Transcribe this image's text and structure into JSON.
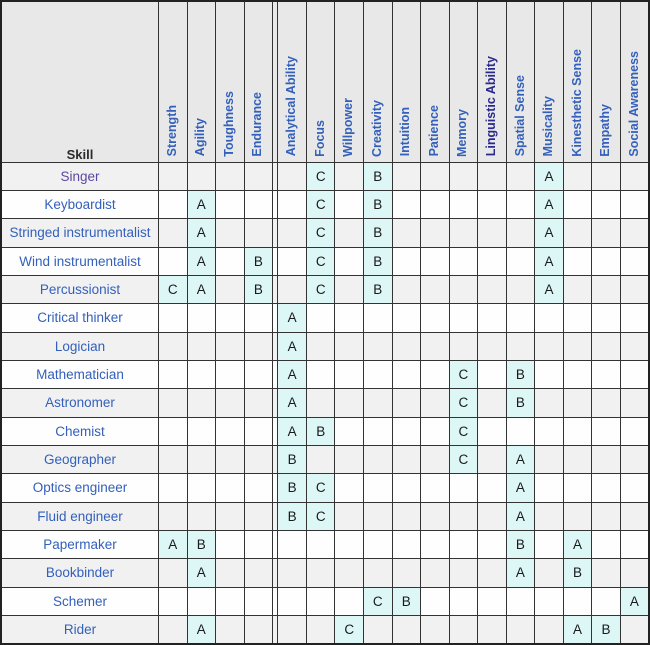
{
  "colors": {
    "link": "#3360bb",
    "visited_link": "#5a48a0",
    "visited_header": "#29298c",
    "header_bg": "#e8e8e8",
    "stripe_bg": "#f1f1f1",
    "row_bg": "#fefefe",
    "value_bg": "#ddf6f6",
    "border": "#333333",
    "letter": "#1a1a1a"
  },
  "table": {
    "skill_header": "Skill",
    "divider_after": 3,
    "columns": [
      {
        "label": "Strength",
        "visited": false
      },
      {
        "label": "Agility",
        "visited": false
      },
      {
        "label": "Toughness",
        "visited": false
      },
      {
        "label": "Endurance",
        "visited": false
      },
      {
        "label": "Analytical Ability",
        "visited": false
      },
      {
        "label": "Focus",
        "visited": false
      },
      {
        "label": "Willpower",
        "visited": false
      },
      {
        "label": "Creativity",
        "visited": false
      },
      {
        "label": "Intuition",
        "visited": false
      },
      {
        "label": "Patience",
        "visited": false
      },
      {
        "label": "Memory",
        "visited": false
      },
      {
        "label": "Linguistic Ability",
        "visited": true
      },
      {
        "label": "Spatial Sense",
        "visited": false
      },
      {
        "label": "Musicality",
        "visited": false
      },
      {
        "label": "Kinesthetic Sense",
        "visited": false
      },
      {
        "label": "Empathy",
        "visited": false
      },
      {
        "label": "Social Awareness",
        "visited": false
      }
    ],
    "rows": [
      {
        "skill": "Singer",
        "visited": true,
        "values": [
          "",
          "",
          "",
          "",
          "",
          "C",
          "",
          "B",
          "",
          "",
          "",
          "",
          "",
          "A",
          "",
          "",
          ""
        ]
      },
      {
        "skill": "Keyboardist",
        "visited": false,
        "values": [
          "",
          "A",
          "",
          "",
          "",
          "C",
          "",
          "B",
          "",
          "",
          "",
          "",
          "",
          "A",
          "",
          "",
          ""
        ]
      },
      {
        "skill": "Stringed instrumentalist",
        "visited": false,
        "values": [
          "",
          "A",
          "",
          "",
          "",
          "C",
          "",
          "B",
          "",
          "",
          "",
          "",
          "",
          "A",
          "",
          "",
          ""
        ]
      },
      {
        "skill": "Wind instrumentalist",
        "visited": false,
        "values": [
          "",
          "A",
          "",
          "B",
          "",
          "C",
          "",
          "B",
          "",
          "",
          "",
          "",
          "",
          "A",
          "",
          "",
          ""
        ]
      },
      {
        "skill": "Percussionist",
        "visited": false,
        "values": [
          "C",
          "A",
          "",
          "B",
          "",
          "C",
          "",
          "B",
          "",
          "",
          "",
          "",
          "",
          "A",
          "",
          "",
          ""
        ]
      },
      {
        "skill": "Critical thinker",
        "visited": false,
        "values": [
          "",
          "",
          "",
          "",
          "A",
          "",
          "",
          "",
          "",
          "",
          "",
          "",
          "",
          "",
          "",
          "",
          ""
        ]
      },
      {
        "skill": "Logician",
        "visited": false,
        "values": [
          "",
          "",
          "",
          "",
          "A",
          "",
          "",
          "",
          "",
          "",
          "",
          "",
          "",
          "",
          "",
          "",
          ""
        ]
      },
      {
        "skill": "Mathematician",
        "visited": false,
        "values": [
          "",
          "",
          "",
          "",
          "A",
          "",
          "",
          "",
          "",
          "",
          "C",
          "",
          "B",
          "",
          "",
          "",
          ""
        ]
      },
      {
        "skill": "Astronomer",
        "visited": false,
        "values": [
          "",
          "",
          "",
          "",
          "A",
          "",
          "",
          "",
          "",
          "",
          "C",
          "",
          "B",
          "",
          "",
          "",
          ""
        ]
      },
      {
        "skill": "Chemist",
        "visited": false,
        "values": [
          "",
          "",
          "",
          "",
          "A",
          "B",
          "",
          "",
          "",
          "",
          "C",
          "",
          "",
          "",
          "",
          "",
          ""
        ]
      },
      {
        "skill": "Geographer",
        "visited": false,
        "values": [
          "",
          "",
          "",
          "",
          "B",
          "",
          "",
          "",
          "",
          "",
          "C",
          "",
          "A",
          "",
          "",
          "",
          ""
        ]
      },
      {
        "skill": "Optics engineer",
        "visited": false,
        "values": [
          "",
          "",
          "",
          "",
          "B",
          "C",
          "",
          "",
          "",
          "",
          "",
          "",
          "A",
          "",
          "",
          "",
          ""
        ]
      },
      {
        "skill": "Fluid engineer",
        "visited": false,
        "values": [
          "",
          "",
          "",
          "",
          "B",
          "C",
          "",
          "",
          "",
          "",
          "",
          "",
          "A",
          "",
          "",
          "",
          ""
        ]
      },
      {
        "skill": "Papermaker",
        "visited": false,
        "values": [
          "A",
          "B",
          "",
          "",
          "",
          "",
          "",
          "",
          "",
          "",
          "",
          "",
          "B",
          "",
          "A",
          "",
          ""
        ]
      },
      {
        "skill": "Bookbinder",
        "visited": false,
        "values": [
          "",
          "A",
          "",
          "",
          "",
          "",
          "",
          "",
          "",
          "",
          "",
          "",
          "A",
          "",
          "B",
          "",
          ""
        ]
      },
      {
        "skill": "Schemer",
        "visited": false,
        "values": [
          "",
          "",
          "",
          "",
          "",
          "",
          "",
          "C",
          "B",
          "",
          "",
          "",
          "",
          "",
          "",
          "",
          "A"
        ]
      },
      {
        "skill": "Rider",
        "visited": false,
        "values": [
          "",
          "A",
          "",
          "",
          "",
          "",
          "C",
          "",
          "",
          "",
          "",
          "",
          "",
          "",
          "A",
          "B",
          ""
        ]
      }
    ]
  }
}
